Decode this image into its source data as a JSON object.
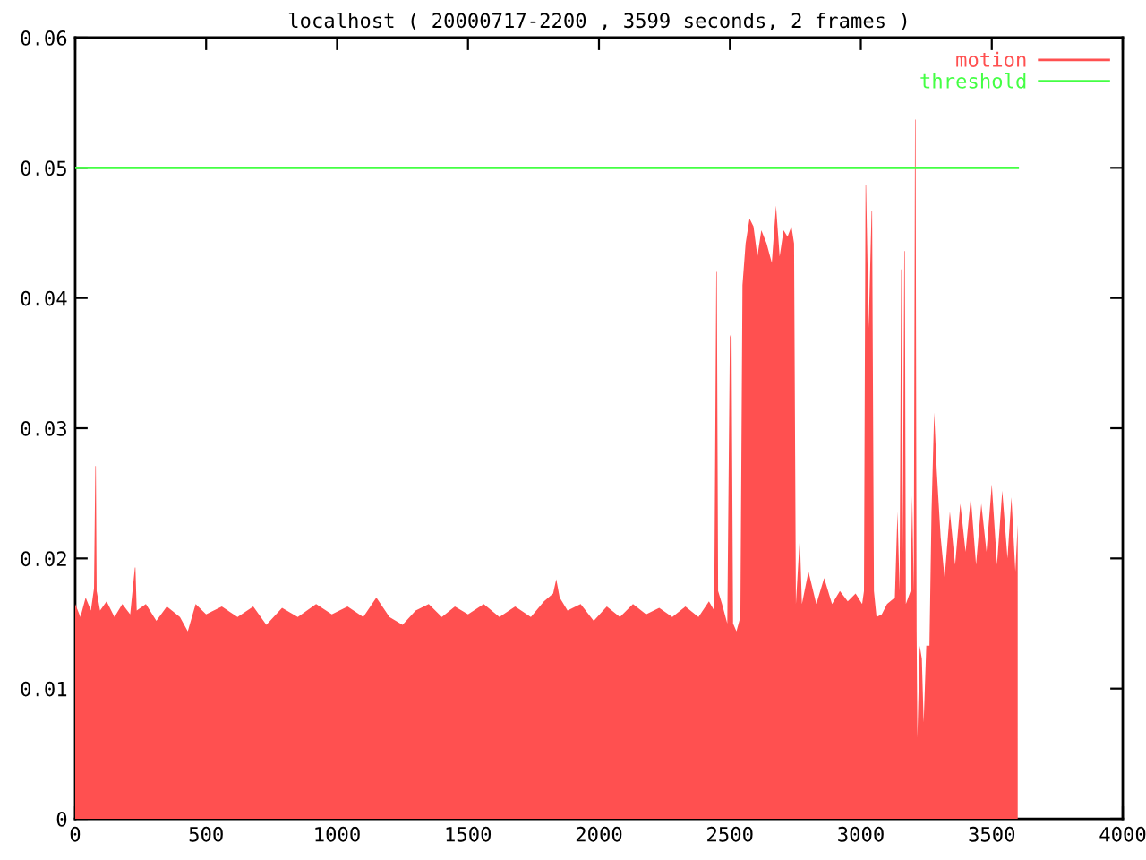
{
  "chart_data": {
    "type": "area",
    "title": "localhost ( 20000717-2200 , 3599 seconds, 2 frames )",
    "xlim": [
      0,
      4000
    ],
    "xticks": [
      0,
      500,
      1000,
      1500,
      2000,
      2500,
      3000,
      3500,
      4000
    ],
    "ylim": [
      0,
      0.06
    ],
    "yticks": [
      0,
      0.01,
      0.02,
      0.03,
      0.04,
      0.05,
      0.06
    ],
    "legend": "top right",
    "series": [
      {
        "name": "motion",
        "color": "#ff5050",
        "x": [
          0,
          20,
          40,
          60,
          72,
          77,
          79,
          82,
          95,
          120,
          150,
          180,
          210,
          228,
          230,
          235,
          270,
          310,
          350,
          400,
          430,
          460,
          500,
          560,
          620,
          680,
          730,
          790,
          850,
          920,
          980,
          1040,
          1100,
          1150,
          1200,
          1250,
          1300,
          1350,
          1400,
          1450,
          1500,
          1560,
          1620,
          1680,
          1740,
          1790,
          1825,
          1837,
          1850,
          1880,
          1930,
          1980,
          2030,
          2080,
          2130,
          2180,
          2230,
          2280,
          2330,
          2380,
          2420,
          2440,
          2448,
          2450,
          2455,
          2470,
          2490,
          2500,
          2506,
          2512,
          2525,
          2540,
          2548,
          2560,
          2575,
          2590,
          2605,
          2620,
          2640,
          2660,
          2676,
          2690,
          2705,
          2720,
          2735,
          2745,
          2752,
          2767,
          2775,
          2800,
          2830,
          2860,
          2890,
          2920,
          2950,
          2980,
          3005,
          3012,
          3018,
          3020,
          3030,
          3041,
          3043,
          3050,
          3060,
          3080,
          3100,
          3130,
          3140,
          3148,
          3154,
          3156,
          3160,
          3166,
          3168,
          3172,
          3190,
          3196,
          3202,
          3207,
          3209,
          3213,
          3216,
          3225,
          3233,
          3240,
          3250,
          3262,
          3270,
          3280,
          3290,
          3305,
          3320,
          3340,
          3360,
          3380,
          3400,
          3420,
          3440,
          3460,
          3480,
          3500,
          3520,
          3540,
          3560,
          3575,
          3590,
          3599
        ],
        "values": [
          0.0165,
          0.0155,
          0.017,
          0.016,
          0.0177,
          0.0271,
          0.0271,
          0.0175,
          0.016,
          0.0167,
          0.0155,
          0.0165,
          0.0157,
          0.0193,
          0.0193,
          0.016,
          0.0165,
          0.0152,
          0.0163,
          0.0155,
          0.0144,
          0.0165,
          0.0157,
          0.0163,
          0.0155,
          0.0163,
          0.0149,
          0.0162,
          0.0155,
          0.0165,
          0.0157,
          0.0163,
          0.0155,
          0.017,
          0.0155,
          0.0149,
          0.016,
          0.0165,
          0.0155,
          0.0163,
          0.0157,
          0.0165,
          0.0155,
          0.0163,
          0.0155,
          0.0167,
          0.0173,
          0.0184,
          0.017,
          0.016,
          0.0165,
          0.0152,
          0.0163,
          0.0155,
          0.0165,
          0.0157,
          0.0162,
          0.0155,
          0.0163,
          0.0155,
          0.0167,
          0.016,
          0.042,
          0.042,
          0.0175,
          0.0165,
          0.015,
          0.037,
          0.0374,
          0.015,
          0.0144,
          0.0155,
          0.041,
          0.0442,
          0.0461,
          0.0455,
          0.0432,
          0.0452,
          0.0442,
          0.0427,
          0.0471,
          0.0432,
          0.0452,
          0.0447,
          0.0455,
          0.0442,
          0.0165,
          0.0216,
          0.0165,
          0.019,
          0.0165,
          0.0185,
          0.0165,
          0.0175,
          0.0167,
          0.0173,
          0.0165,
          0.0175,
          0.0487,
          0.0487,
          0.0377,
          0.0467,
          0.0467,
          0.0175,
          0.0155,
          0.0157,
          0.0165,
          0.017,
          0.0236,
          0.0175,
          0.0422,
          0.0422,
          0.0205,
          0.0436,
          0.0436,
          0.0165,
          0.0175,
          0.0248,
          0.0175,
          0.0537,
          0.0537,
          0.0144,
          0.0062,
          0.0133,
          0.0123,
          0.0074,
          0.0133,
          0.0133,
          0.0236,
          0.0312,
          0.0267,
          0.0216,
          0.0185,
          0.0236,
          0.0195,
          0.0242,
          0.0205,
          0.0247,
          0.0195,
          0.0242,
          0.0205,
          0.0257,
          0.0195,
          0.0252,
          0.02,
          0.0247,
          0.019,
          0.0226
        ]
      },
      {
        "name": "threshold",
        "type": "line",
        "color": "#44ff44",
        "x": [
          0,
          3599
        ],
        "values": [
          0.05,
          0.05
        ]
      }
    ]
  }
}
